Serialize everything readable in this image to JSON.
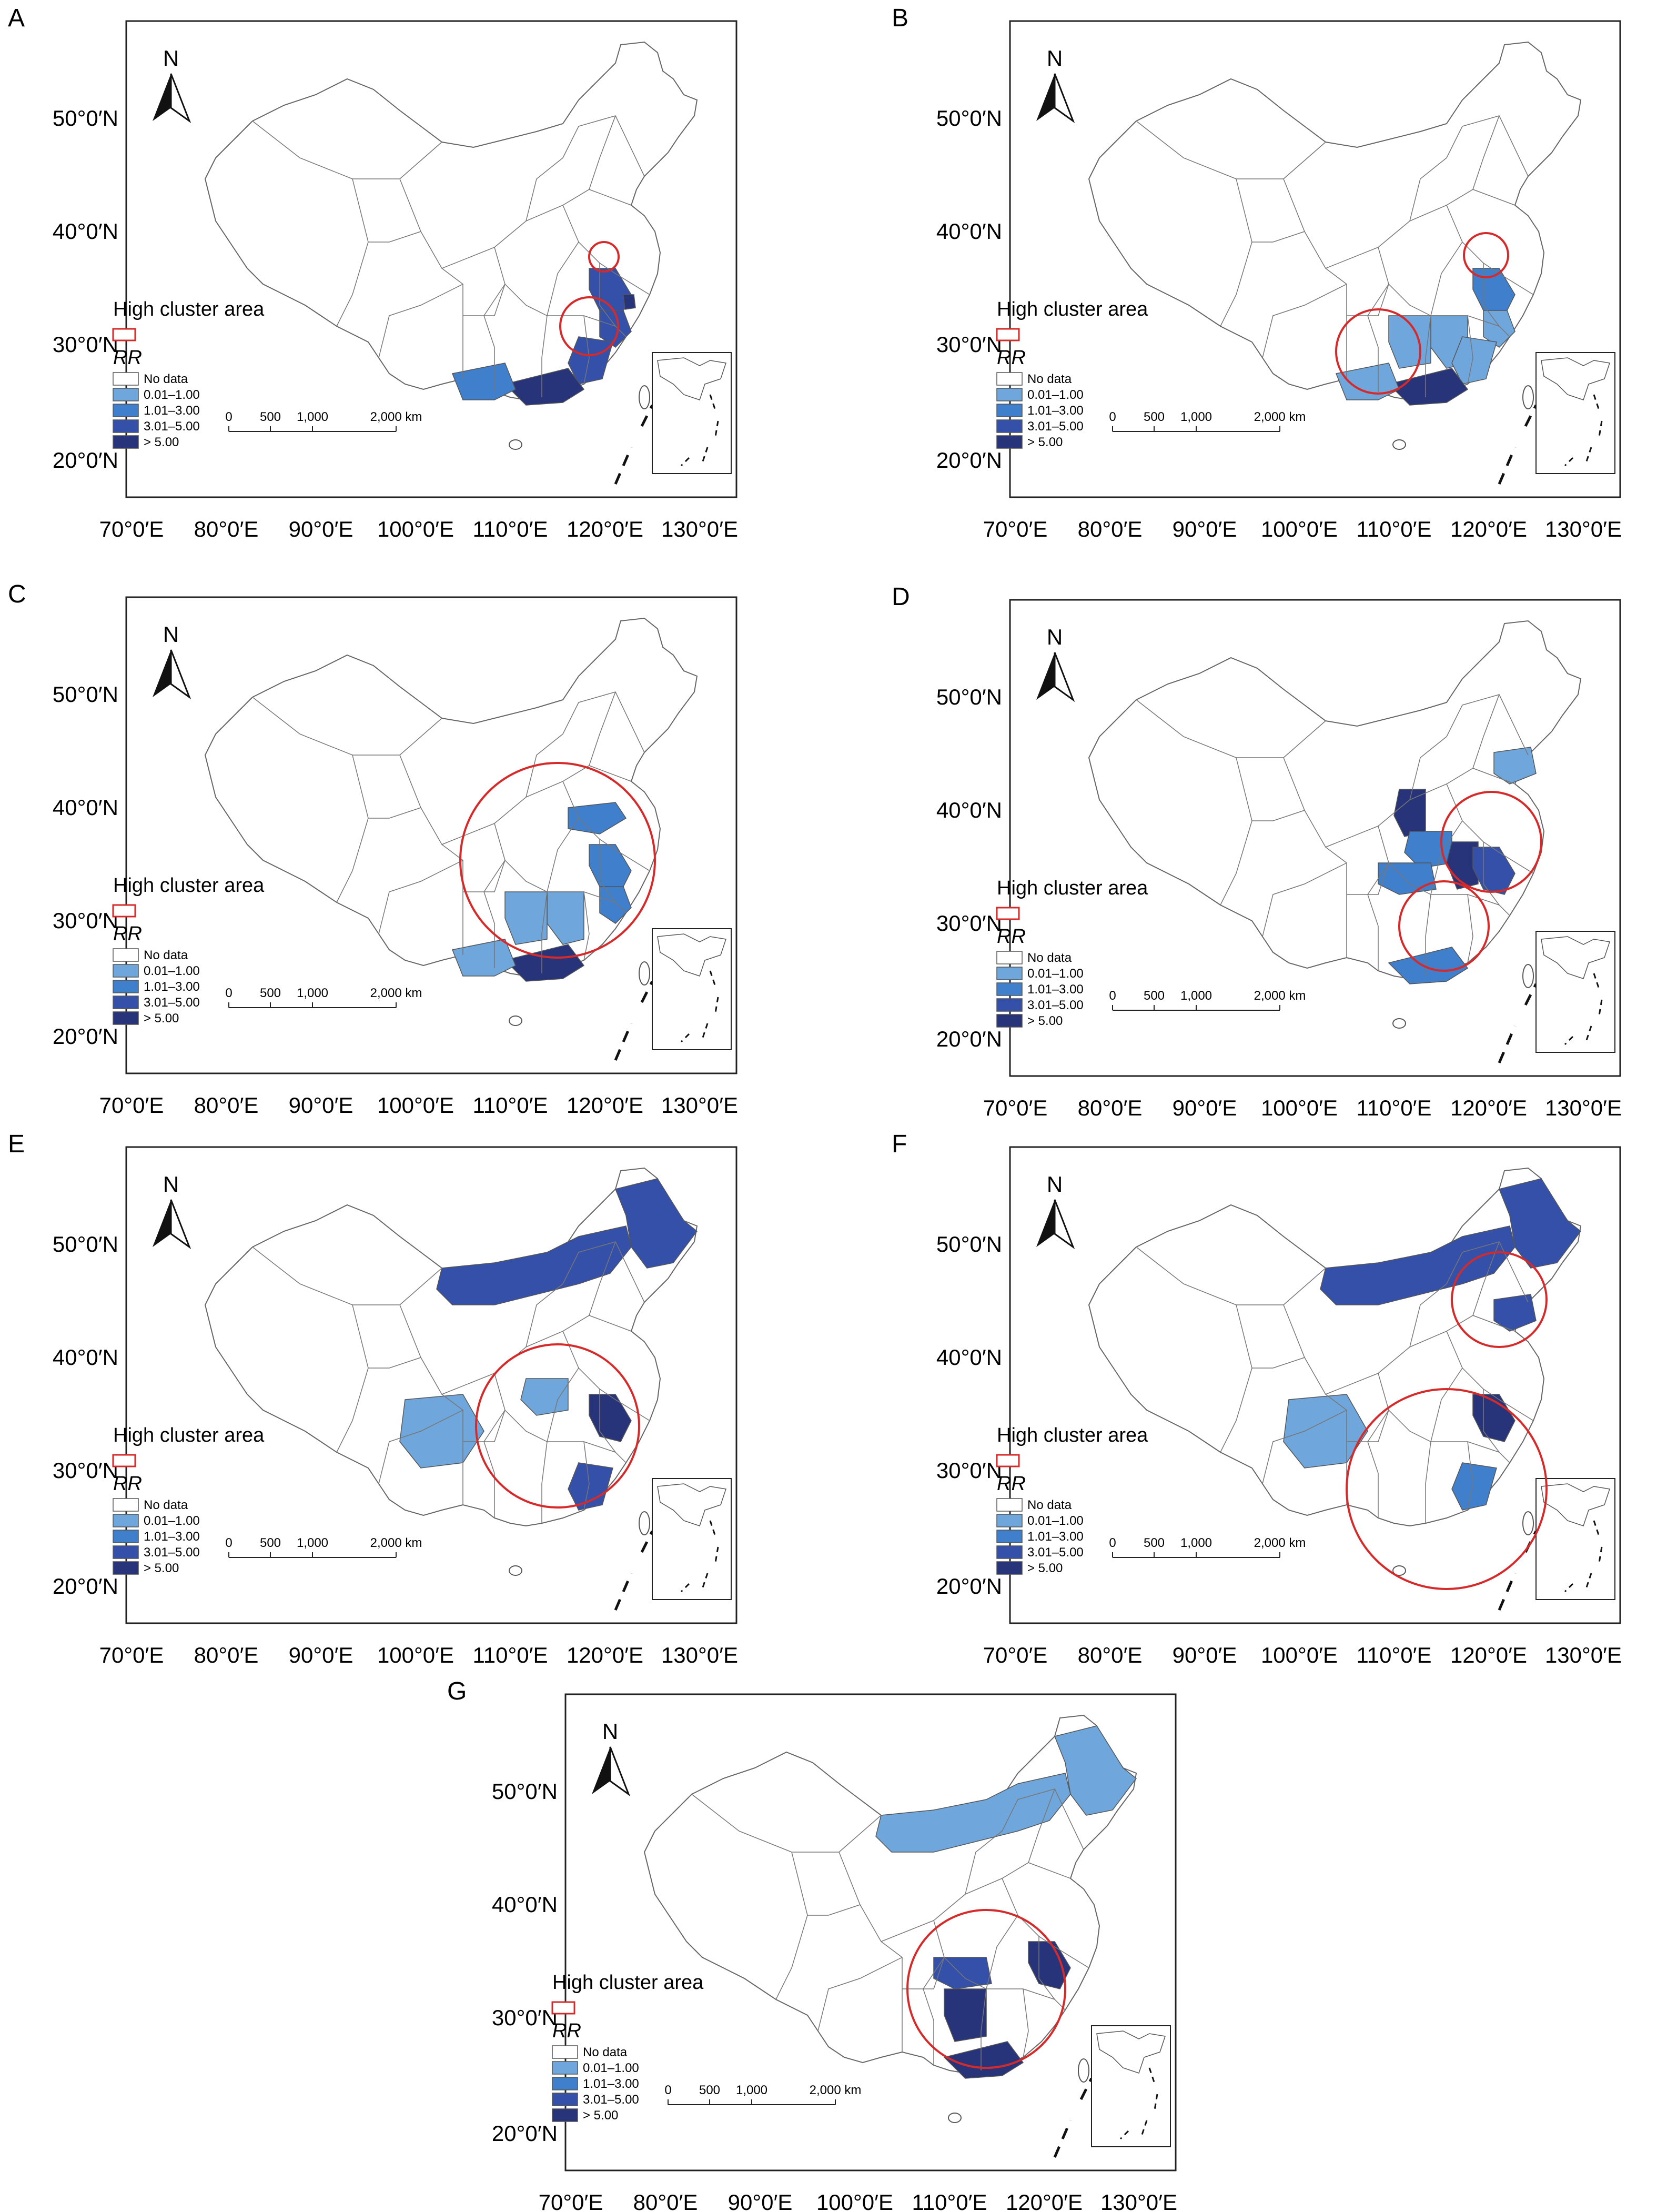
{
  "legend": {
    "cluster_title": "High cluster area",
    "rr_title": "RR",
    "classes": [
      {
        "label": "No data",
        "color": "#ffffff"
      },
      {
        "label": "0.01–1.00",
        "color": "#6fa6db"
      },
      {
        "label": "1.01–3.00",
        "color": "#3f7fcc"
      },
      {
        "label": "3.01–5.00",
        "color": "#3450a8"
      },
      {
        "label": "> 5.00",
        "color": "#283479"
      }
    ],
    "cluster_color": "#d62a2a"
  },
  "scale_bar": {
    "ticks": [
      "0",
      "500",
      "1,000",
      "2,000 km"
    ]
  },
  "north_label": "N",
  "lat_labels": [
    "50°0′N",
    "40°0′N",
    "30°0′N",
    "20°0′N"
  ],
  "lon_labels": [
    "70°0′E",
    "80°0′E",
    "90°0′E",
    "100°0′E",
    "110°0′E",
    "120°0′E",
    "130°0′E"
  ],
  "panels": [
    {
      "label": "A",
      "shaded_regions": [
        {
          "region": "Jiangsu",
          "rr_class": "3.01–5.00"
        },
        {
          "region": "Shanghai",
          "rr_class": "> 5.00"
        },
        {
          "region": "Zhejiang",
          "rr_class": "3.01–5.00"
        },
        {
          "region": "Fujian",
          "rr_class": "3.01–5.00"
        },
        {
          "region": "Guangdong",
          "rr_class": "> 5.00"
        },
        {
          "region": "Guangxi",
          "rr_class": "1.01–3.00"
        }
      ],
      "clusters": 2
    },
    {
      "label": "B",
      "shaded_regions": [
        {
          "region": "Jiangsu",
          "rr_class": "1.01–3.00"
        },
        {
          "region": "Zhejiang",
          "rr_class": "0.01–1.00"
        },
        {
          "region": "Jiangxi",
          "rr_class": "0.01–1.00"
        },
        {
          "region": "Hunan",
          "rr_class": "0.01–1.00"
        },
        {
          "region": "Fujian",
          "rr_class": "0.01–1.00"
        },
        {
          "region": "Guangdong",
          "rr_class": "> 5.00"
        },
        {
          "region": "Guangxi",
          "rr_class": "0.01–1.00"
        }
      ],
      "clusters": 2
    },
    {
      "label": "C",
      "shaded_regions": [
        {
          "region": "Shandong",
          "rr_class": "1.01–3.00"
        },
        {
          "region": "Jiangsu",
          "rr_class": "1.01–3.00"
        },
        {
          "region": "Zhejiang",
          "rr_class": "1.01–3.00"
        },
        {
          "region": "Jiangxi",
          "rr_class": "0.01–1.00"
        },
        {
          "region": "Hunan",
          "rr_class": "0.01–1.00"
        },
        {
          "region": "Guangdong",
          "rr_class": "> 5.00"
        },
        {
          "region": "Guangxi",
          "rr_class": "0.01–1.00"
        }
      ],
      "clusters": 1
    },
    {
      "label": "D",
      "shaded_regions": [
        {
          "region": "Shanxi",
          "rr_class": "> 5.00"
        },
        {
          "region": "Henan",
          "rr_class": "1.01–3.00"
        },
        {
          "region": "Anhui",
          "rr_class": "> 5.00"
        },
        {
          "region": "Jiangsu",
          "rr_class": "3.01–5.00"
        },
        {
          "region": "Hubei",
          "rr_class": "1.01–3.00"
        },
        {
          "region": "Guangdong",
          "rr_class": "1.01–3.00"
        },
        {
          "region": "Liaoning",
          "rr_class": "0.01–1.00"
        }
      ],
      "clusters": 2
    },
    {
      "label": "E",
      "shaded_regions": [
        {
          "region": "Inner Mongolia",
          "rr_class": "3.01–5.00"
        },
        {
          "region": "Heilongjiang",
          "rr_class": "3.01–5.00"
        },
        {
          "region": "Jiangsu",
          "rr_class": "> 5.00"
        },
        {
          "region": "Sichuan",
          "rr_class": "0.01–1.00"
        },
        {
          "region": "Henan",
          "rr_class": "0.01–1.00"
        },
        {
          "region": "Fujian",
          "rr_class": "3.01–5.00"
        }
      ],
      "clusters": 1
    },
    {
      "label": "F",
      "shaded_regions": [
        {
          "region": "Inner Mongolia",
          "rr_class": "3.01–5.00"
        },
        {
          "region": "Heilongjiang",
          "rr_class": "3.01–5.00"
        },
        {
          "region": "Liaoning",
          "rr_class": "3.01–5.00"
        },
        {
          "region": "Jiangsu",
          "rr_class": "> 5.00"
        },
        {
          "region": "Sichuan",
          "rr_class": "0.01–1.00"
        },
        {
          "region": "Fujian",
          "rr_class": "1.01–3.00"
        }
      ],
      "clusters": 2
    },
    {
      "label": "G",
      "shaded_regions": [
        {
          "region": "Heilongjiang",
          "rr_class": "0.01–1.00"
        },
        {
          "region": "Inner Mongolia",
          "rr_class": "0.01–1.00"
        },
        {
          "region": "Jiangsu",
          "rr_class": "> 5.00"
        },
        {
          "region": "Hunan",
          "rr_class": "> 5.00"
        },
        {
          "region": "Hubei",
          "rr_class": "3.01–5.00"
        },
        {
          "region": "Guangdong",
          "rr_class": "> 5.00"
        }
      ],
      "clusters": 1
    }
  ]
}
